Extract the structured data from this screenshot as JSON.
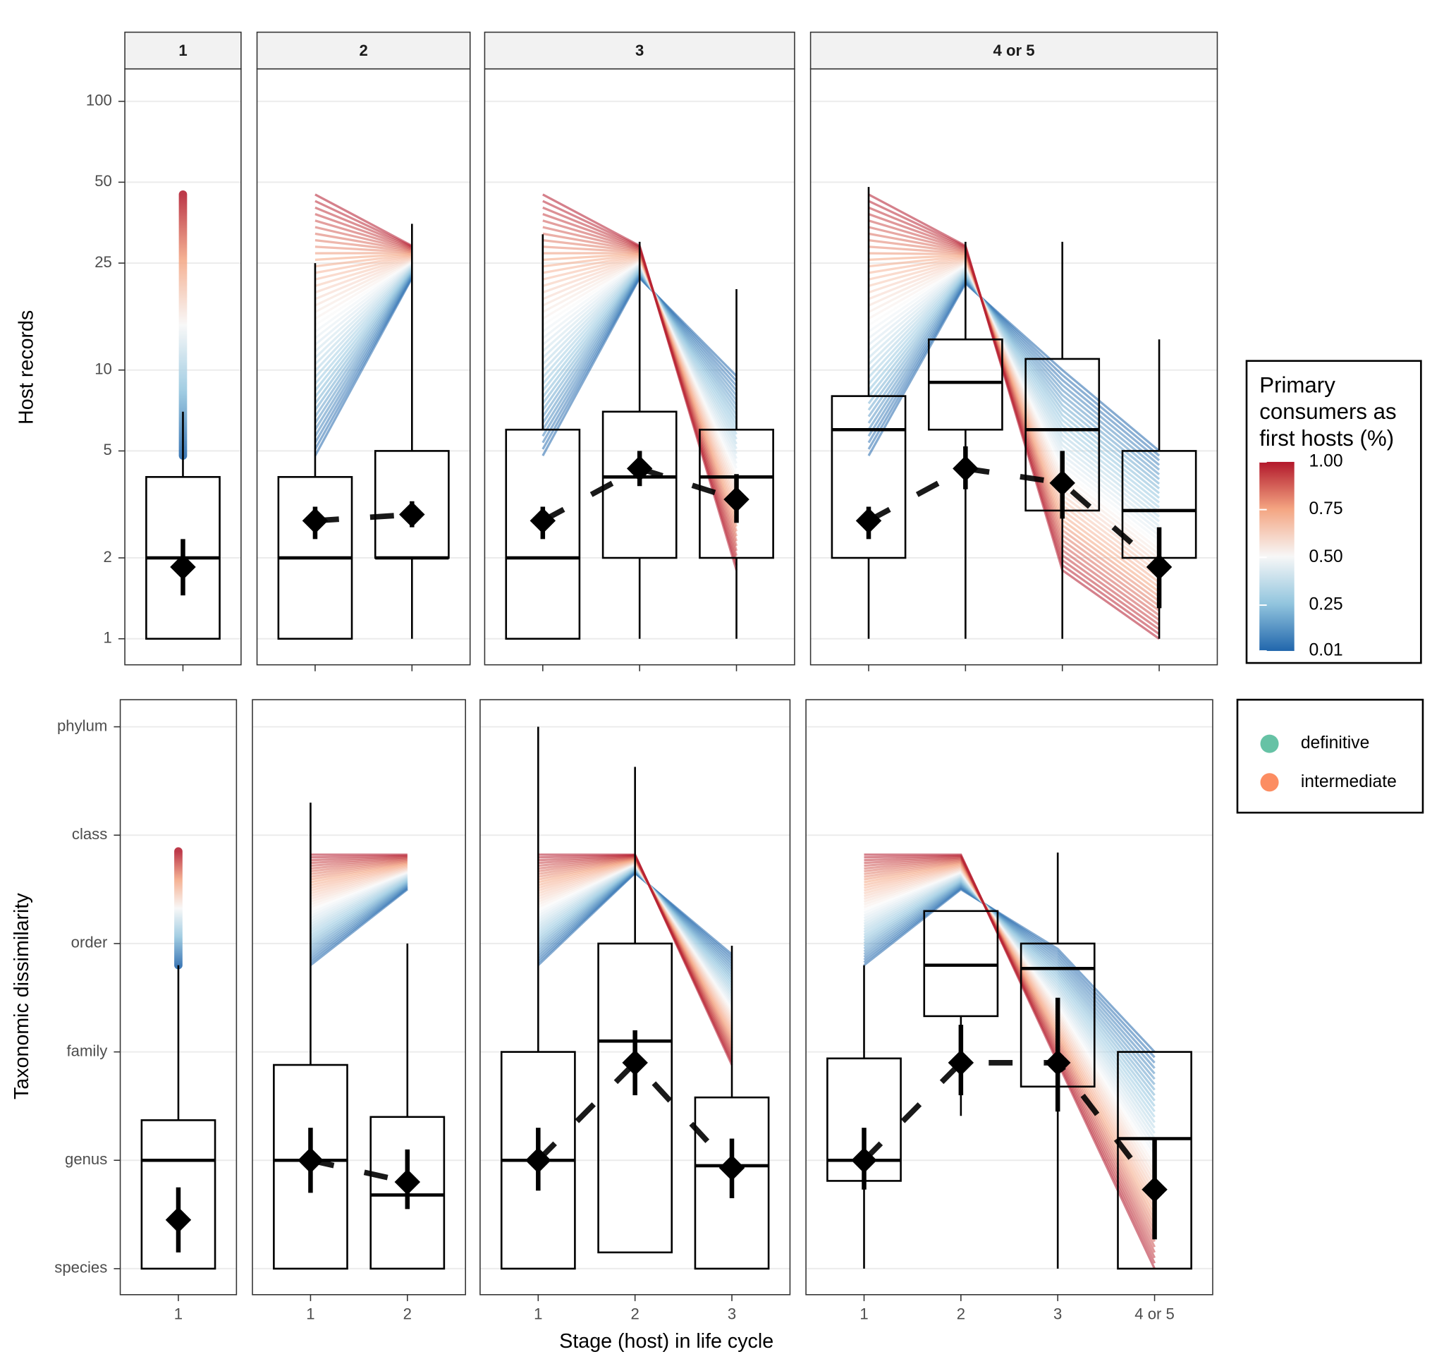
{
  "chart_data": {
    "type": "box",
    "x_label": "Stage (host) in life cycle",
    "facets": [
      "1",
      "2",
      "3",
      "4 or 5"
    ],
    "stage_labels": [
      [
        "1"
      ],
      [
        "1",
        "2"
      ],
      [
        "1",
        "2",
        "3"
      ],
      [
        "1",
        "2",
        "3",
        "4 or 5"
      ]
    ],
    "grid": true,
    "panels": [
      {
        "y_label": "Host records",
        "log_scale": true,
        "ylim": [
          0.8,
          132
        ],
        "yticks": [
          1,
          2,
          5,
          10,
          25,
          50,
          100
        ],
        "facets": [
          {
            "stages": [
              {
                "min": 1,
                "q1": 1,
                "median": 2,
                "q3": 4,
                "max": 7,
                "mean": 1.85,
                "ci_low": 1.45,
                "ci_high": 2.35,
                "fan_low": 4.8,
                "fan_high": 45
              }
            ]
          },
          {
            "stages": [
              {
                "min": 1,
                "q1": 1,
                "median": 2,
                "q3": 4,
                "max": 25,
                "mean": 2.75,
                "ci_low": 2.35,
                "ci_high": 3.1,
                "fan_low": 4.8,
                "fan_high": 45
              },
              {
                "min": 1,
                "q1": 2,
                "median": 2,
                "q3": 5,
                "max": 35,
                "mean": 2.9,
                "ci_low": 2.6,
                "ci_high": 3.25,
                "fan_low": 22,
                "fan_high": 29
              }
            ]
          },
          {
            "stages": [
              {
                "min": 1,
                "q1": 1,
                "median": 2,
                "q3": 6,
                "max": 32,
                "mean": 2.75,
                "ci_low": 2.35,
                "ci_high": 3.1,
                "fan_low": 4.8,
                "fan_high": 45
              },
              {
                "min": 1,
                "q1": 2,
                "median": 4,
                "q3": 7,
                "max": 30,
                "mean": 4.3,
                "ci_low": 3.7,
                "ci_high": 5.0,
                "fan_low": 22,
                "fan_high": 29
              },
              {
                "min": 1,
                "q1": 2,
                "median": 4,
                "q3": 6,
                "max": 20,
                "mean": 3.3,
                "ci_low": 2.7,
                "ci_high": 4.1,
                "fan_low": 9.5,
                "fan_high": 1.8
              }
            ]
          },
          {
            "stages": [
              {
                "min": 1,
                "q1": 2,
                "median": 6,
                "q3": 8,
                "max": 48,
                "mean": 2.75,
                "ci_low": 2.35,
                "ci_high": 3.1,
                "fan_low": 4.8,
                "fan_high": 45
              },
              {
                "min": 1,
                "q1": 6,
                "median": 9,
                "q3": 13,
                "max": 30,
                "mean": 4.3,
                "ci_low": 3.6,
                "ci_high": 5.2,
                "fan_low": 21,
                "fan_high": 29
              },
              {
                "min": 1,
                "q1": 3,
                "median": 6,
                "q3": 11,
                "max": 30,
                "mean": 3.8,
                "ci_low": 2.8,
                "ci_high": 5.0,
                "fan_low": 10,
                "fan_high": 1.8
              },
              {
                "min": 1,
                "q1": 2,
                "median": 3,
                "q3": 5,
                "max": 13,
                "mean": 1.85,
                "ci_low": 1.3,
                "ci_high": 2.6,
                "fan_low": 5,
                "fan_high": 1
              }
            ]
          }
        ]
      },
      {
        "y_label": "Taxonomic dissimilarity",
        "log_scale": false,
        "ylim": [
          -0.24,
          5.25
        ],
        "yticks": [
          {
            "value": 0,
            "label": "species"
          },
          {
            "value": 1,
            "label": "genus"
          },
          {
            "value": 2,
            "label": "family"
          },
          {
            "value": 3,
            "label": "order"
          },
          {
            "value": 4,
            "label": "class"
          },
          {
            "value": 5,
            "label": "phylum"
          }
        ],
        "facets": [
          {
            "stages": [
              {
                "min": 0,
                "q1": 0,
                "median": 1,
                "q3": 1.37,
                "max": 2.8,
                "mean": 0.45,
                "ci_low": 0.15,
                "ci_high": 0.75,
                "fan_low": 2.8,
                "fan_high": 3.85
              }
            ]
          },
          {
            "stages": [
              {
                "min": 0,
                "q1": 0,
                "median": 1,
                "q3": 1.88,
                "max": 4.3,
                "mean": 1.0,
                "ci_low": 0.7,
                "ci_high": 1.3,
                "fan_low": 2.8,
                "fan_high": 3.82
              },
              {
                "min": 0,
                "q1": 0,
                "median": 0.68,
                "q3": 1.4,
                "max": 3.0,
                "mean": 0.8,
                "ci_low": 0.55,
                "ci_high": 1.1,
                "fan_low": 3.5,
                "fan_high": 3.82
              }
            ]
          },
          {
            "stages": [
              {
                "min": 0,
                "q1": 0,
                "median": 1,
                "q3": 2.0,
                "max": 5.0,
                "mean": 1.0,
                "ci_low": 0.72,
                "ci_high": 1.3,
                "fan_low": 2.8,
                "fan_high": 3.82
              },
              {
                "min": 0.15,
                "q1": 0.15,
                "median": 2.1,
                "q3": 3.0,
                "max": 4.63,
                "mean": 1.9,
                "ci_low": 1.6,
                "ci_high": 2.2,
                "fan_low": 3.65,
                "fan_high": 3.82
              },
              {
                "min": 0,
                "q1": 0,
                "median": 0.95,
                "q3": 1.58,
                "max": 2.98,
                "mean": 0.93,
                "ci_low": 0.65,
                "ci_high": 1.2,
                "fan_low": 2.9,
                "fan_high": 1.88
              }
            ]
          },
          {
            "stages": [
              {
                "min": 0,
                "q1": 0.81,
                "median": 1.0,
                "q3": 1.94,
                "max": 2.8,
                "mean": 1.0,
                "ci_low": 0.73,
                "ci_high": 1.3,
                "fan_low": 2.8,
                "fan_high": 3.82
              },
              {
                "min": 1.41,
                "q1": 2.33,
                "median": 2.8,
                "q3": 3.3,
                "max": 3.3,
                "mean": 1.9,
                "ci_low": 1.6,
                "ci_high": 2.25,
                "fan_low": 3.5,
                "fan_high": 3.82
              },
              {
                "min": 0,
                "q1": 1.68,
                "median": 2.77,
                "q3": 3.0,
                "max": 3.84,
                "mean": 1.9,
                "ci_low": 1.45,
                "ci_high": 2.5,
                "fan_low": 2.95,
                "fan_high": 1.9
              },
              {
                "min": 0,
                "q1": 0,
                "median": 1.2,
                "q3": 2.0,
                "max": 2.0,
                "mean": 0.73,
                "ci_low": 0.27,
                "ci_high": 1.2,
                "fan_low": 2.0,
                "fan_high": 0
              }
            ]
          }
        ]
      }
    ],
    "colorbar": {
      "title": [
        "Primary",
        "consumers as",
        "first hosts (%)"
      ],
      "limits": [
        0.01,
        1
      ],
      "ticks": [
        {
          "value": 1,
          "label": "1.00"
        },
        0.75,
        {
          "value": 0.5,
          "label": "0.50"
        },
        0.25,
        0.01
      ],
      "colors": [
        "#2166ac",
        "#92c5de",
        "#f7f7f7",
        "#f4a582",
        "#b2182b"
      ]
    },
    "legend": {
      "entries": [
        {
          "name": "definitive",
          "color": "#66c2a5"
        },
        {
          "name": "intermediate",
          "color": "#fc8d62"
        }
      ]
    }
  }
}
